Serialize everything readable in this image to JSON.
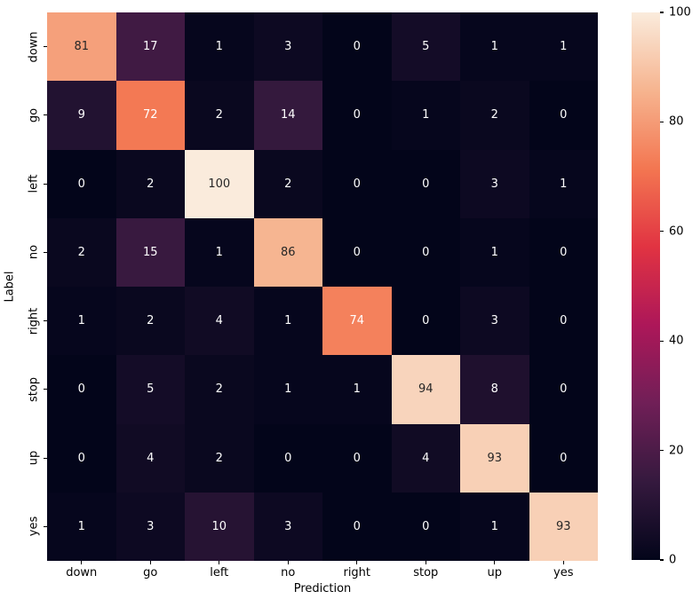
{
  "figure": {
    "background": "#ffffff"
  },
  "chart_data": {
    "type": "heatmap",
    "title": "",
    "xlabel": "Prediction",
    "ylabel": "Label",
    "x_categories": [
      "down",
      "go",
      "left",
      "no",
      "right",
      "stop",
      "up",
      "yes"
    ],
    "y_categories": [
      "down",
      "go",
      "left",
      "no",
      "right",
      "stop",
      "up",
      "yes"
    ],
    "matrix": [
      [
        81,
        17,
        1,
        3,
        0,
        5,
        1,
        1
      ],
      [
        9,
        72,
        2,
        14,
        0,
        1,
        2,
        0
      ],
      [
        0,
        2,
        100,
        2,
        0,
        0,
        3,
        1
      ],
      [
        2,
        15,
        1,
        86,
        0,
        0,
        1,
        0
      ],
      [
        1,
        2,
        4,
        1,
        74,
        0,
        3,
        0
      ],
      [
        0,
        5,
        2,
        1,
        1,
        94,
        8,
        0
      ],
      [
        0,
        4,
        2,
        0,
        0,
        4,
        93,
        0
      ],
      [
        1,
        3,
        10,
        3,
        0,
        0,
        1,
        93
      ]
    ],
    "vmin": 0,
    "vmax": 100,
    "colorbar_ticks": [
      0,
      20,
      40,
      60,
      80,
      100
    ],
    "legend_position": "right-colorbar",
    "grid": false,
    "annotated": true,
    "colormap": {
      "name": "rocket",
      "stops": [
        {
          "t": 0.0,
          "hex": "#03051A"
        },
        {
          "t": 0.143,
          "hex": "#35193E"
        },
        {
          "t": 0.286,
          "hex": "#701F57"
        },
        {
          "t": 0.429,
          "hex": "#AD1759"
        },
        {
          "t": 0.571,
          "hex": "#E13342"
        },
        {
          "t": 0.714,
          "hex": "#F37651"
        },
        {
          "t": 0.857,
          "hex": "#F6B48F"
        },
        {
          "t": 1.0,
          "hex": "#FAEBDC"
        }
      ]
    },
    "annotation_colors": {
      "light_text": "#ffffff",
      "dark_text": "#262626"
    },
    "tick_color": "#000000"
  }
}
